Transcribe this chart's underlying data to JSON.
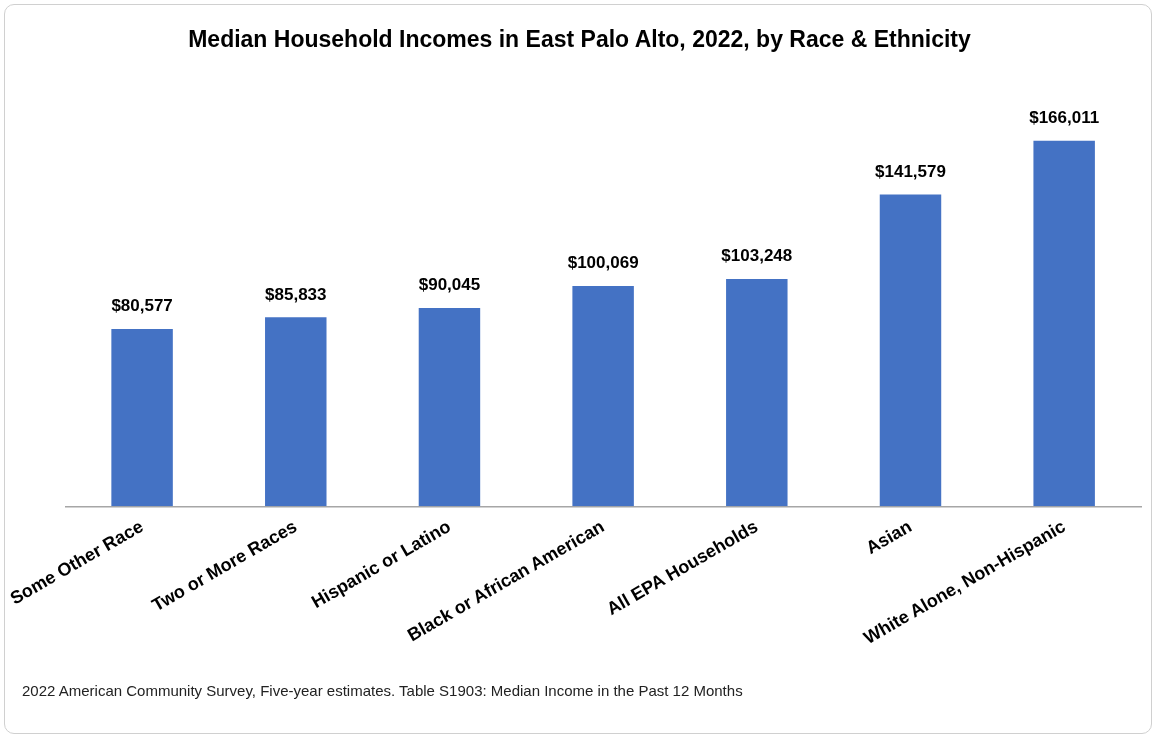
{
  "chart_data": {
    "type": "bar",
    "title": "Median Household Incomes in East Palo Alto, 2022, by Race & Ethnicity",
    "categories": [
      "Some Other Race",
      "Two or More Races",
      "Hispanic or Latino",
      "Black or African American",
      "All EPA Households",
      "Asian",
      "White Alone, Non-Hispanic"
    ],
    "values": [
      80577,
      85833,
      90045,
      100069,
      103248,
      141579,
      166011
    ],
    "value_labels": [
      "$80,577",
      "$85,833",
      "$90,045",
      "$100,069",
      "$103,248",
      "$141,579",
      "$166,011"
    ],
    "color": "#4472c4",
    "grid": false,
    "legend": false,
    "tick_labels": "x",
    "annotations": [
      "2022 American Community Survey, Five-year estimates. Table S1903: Median Income in the Past 12 Months"
    ]
  }
}
